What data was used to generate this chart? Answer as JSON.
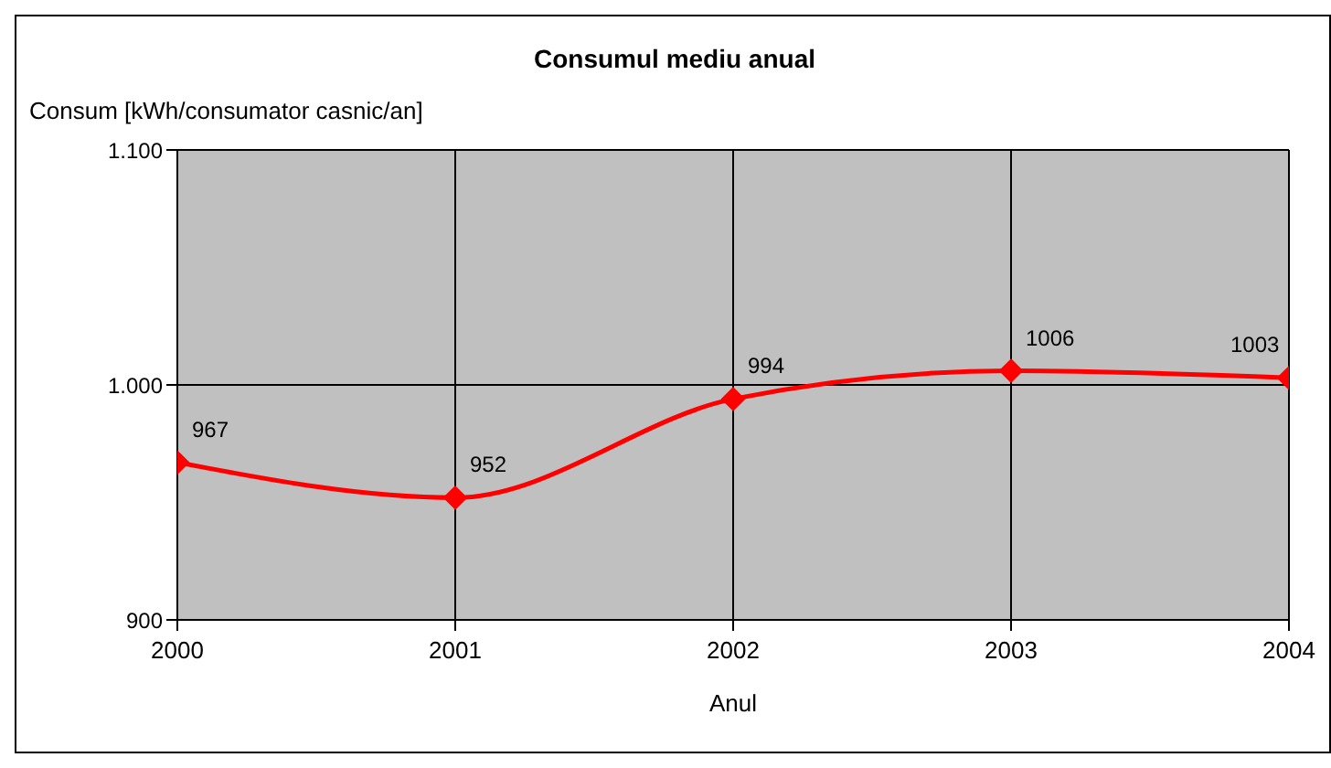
{
  "chart_data": {
    "type": "line",
    "title": "Consumul mediu anual",
    "ylabel": "Consum [kWh/consumator casnic/an]",
    "xlabel": "Anul",
    "x": [
      2000,
      2001,
      2002,
      2003,
      2004
    ],
    "series": [
      {
        "color": "#ff0000",
        "values": [
          967,
          952,
          994,
          1006,
          1003
        ]
      }
    ],
    "xlim": [
      2000,
      2004
    ],
    "xticks": [
      2000,
      2001,
      2002,
      2003,
      2004
    ],
    "ylim": [
      900,
      1100
    ],
    "yticks": [
      {
        "value": 900,
        "label": "900"
      },
      {
        "value": 1000,
        "label": "1.000"
      },
      {
        "value": 1100,
        "label": "1.100"
      }
    ],
    "grid": true,
    "legend": false,
    "marker": "diamond",
    "line_style": "solid",
    "data_labels": true
  }
}
